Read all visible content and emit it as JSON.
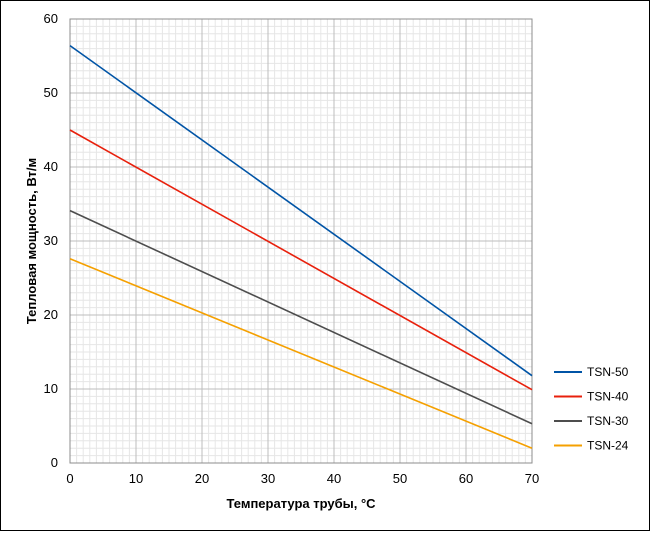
{
  "chart_data": {
    "type": "line",
    "title": "",
    "xlabel": "Температура трубы, °C",
    "ylabel": "Тепловая мощность, Вт/м",
    "xlim": [
      0,
      70
    ],
    "ylim": [
      0,
      60
    ],
    "x_ticks": [
      0,
      10,
      20,
      30,
      40,
      50,
      60,
      70
    ],
    "y_ticks": [
      0,
      10,
      20,
      30,
      40,
      50,
      60
    ],
    "grid": true,
    "legend_position": "right",
    "series": [
      {
        "name": "TSN-50",
        "color": "#0054a6",
        "x": [
          0,
          70
        ],
        "y": [
          56.4,
          11.8
        ]
      },
      {
        "name": "TSN-40",
        "color": "#e8200c",
        "x": [
          0,
          70
        ],
        "y": [
          45.0,
          9.9
        ]
      },
      {
        "name": "TSN-30",
        "color": "#4d4d4d",
        "x": [
          0,
          70
        ],
        "y": [
          34.1,
          5.3
        ]
      },
      {
        "name": "TSN-24",
        "color": "#f5a000",
        "x": [
          0,
          70
        ],
        "y": [
          27.6,
          2.0
        ]
      }
    ]
  }
}
